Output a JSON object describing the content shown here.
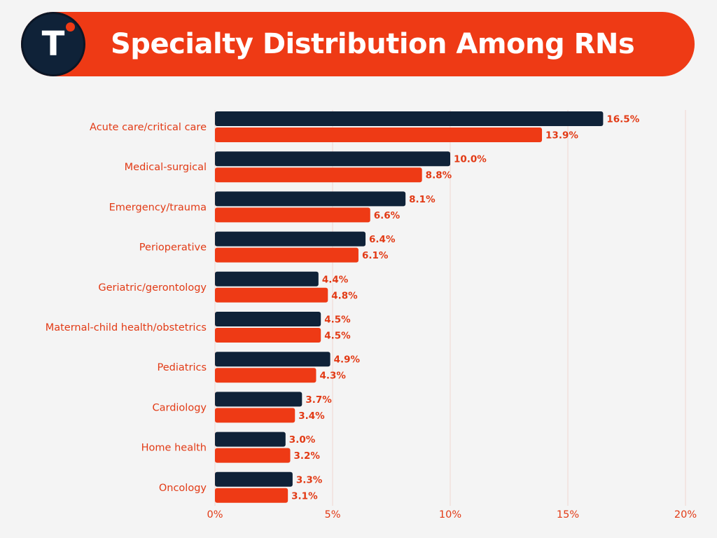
{
  "header": {
    "title": "Specialty Distribution Among RNs",
    "logo_letter": "T"
  },
  "colors": {
    "accent": "#ee3a15",
    "navy": "#0f2238",
    "label": "#e23a15",
    "grid": "#f0d6d0",
    "background": "#f4f4f4"
  },
  "chart_data": {
    "type": "bar",
    "orientation": "horizontal",
    "title": "Specialty Distribution Among RNs",
    "xlabel": "",
    "ylabel": "",
    "xlim": [
      0,
      20
    ],
    "ticks": [
      0,
      5,
      10,
      15,
      20
    ],
    "tick_labels": [
      "0%",
      "5%",
      "10%",
      "15%",
      "20%"
    ],
    "grid": true,
    "legend": "none",
    "categories": [
      "Acute care/critical care",
      "Medical-surgical",
      "Emergency/trauma",
      "Perioperative",
      "Geriatric/gerontology",
      "Maternal-child health/obstetrics",
      "Pediatrics",
      "Cardiology",
      "Home health",
      "Oncology"
    ],
    "series": [
      {
        "color": "#0f2238",
        "values": [
          16.5,
          10.0,
          8.1,
          6.4,
          4.4,
          4.5,
          4.9,
          3.7,
          3.0,
          3.3
        ],
        "labels": [
          "16.5%",
          "10.0%",
          "8.1%",
          "6.4%",
          "4.4%",
          "4.5%",
          "4.9%",
          "3.7%",
          "3.0%",
          "3.3%"
        ]
      },
      {
        "color": "#ee3a15",
        "values": [
          13.9,
          8.8,
          6.6,
          6.1,
          4.8,
          4.5,
          4.3,
          3.4,
          3.2,
          3.1
        ],
        "labels": [
          "13.9%",
          "8.8%",
          "6.6%",
          "6.1%",
          "4.8%",
          "4.5%",
          "4.3%",
          "3.4%",
          "3.2%",
          "3.1%"
        ]
      }
    ]
  }
}
